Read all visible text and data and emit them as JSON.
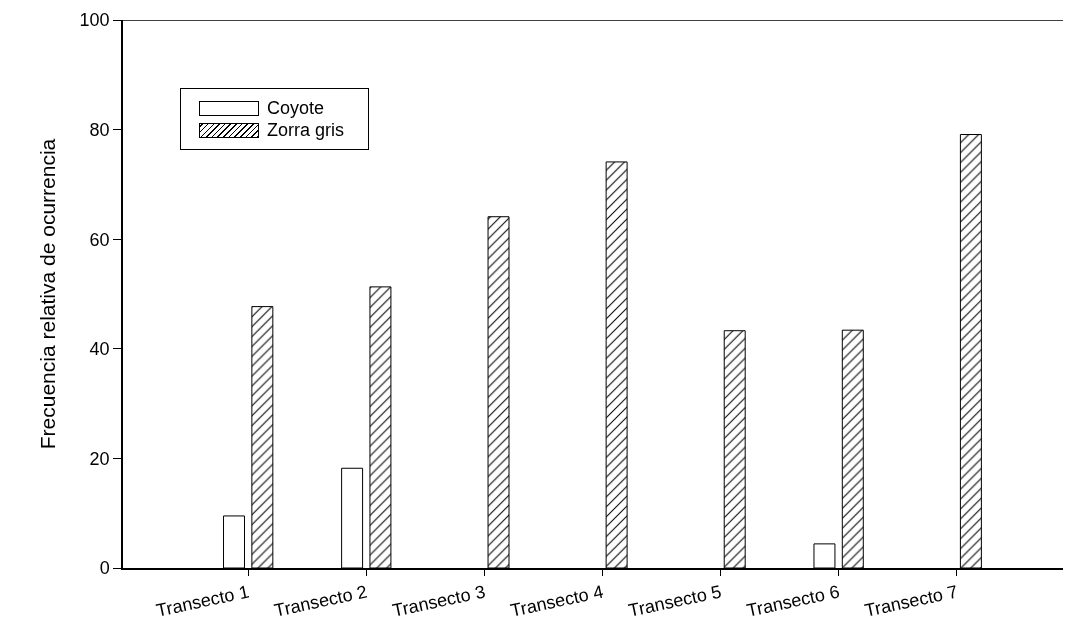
{
  "chart_data": {
    "type": "bar",
    "ylabel": "Frecuencia relativa de ocurrencia",
    "categories": [
      "Transecto 1",
      "Transecto 2",
      "Transecto 3",
      "Transecto 4",
      "Transecto 5",
      "Transecto 6",
      "Transecto 7"
    ],
    "series": [
      {
        "name": "Coyote",
        "color": "#ffffff",
        "values": [
          9.5,
          18.2,
          null,
          null,
          null,
          4.4,
          null
        ]
      },
      {
        "name": "Zorra gris",
        "color": "#000000",
        "values": [
          47.7,
          51.3,
          64.1,
          74.1,
          43.3,
          43.4,
          79.1
        ]
      }
    ],
    "ylim": [
      0,
      100
    ],
    "yticks": [
      0,
      20,
      40,
      60,
      80,
      100
    ],
    "grid": false,
    "legend": "top left"
  }
}
